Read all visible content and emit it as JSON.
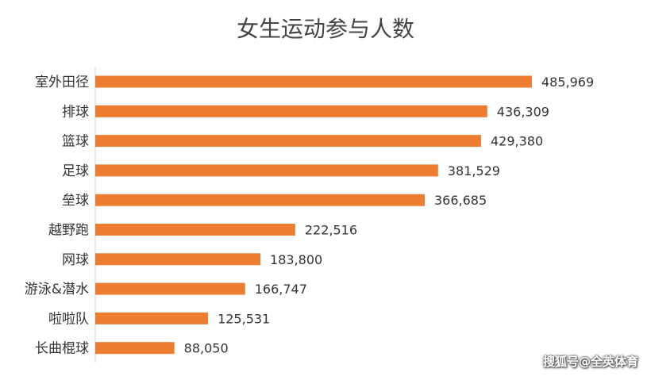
{
  "chart_data": {
    "type": "bar",
    "orientation": "horizontal",
    "title": "女生运动参与人数",
    "xlabel": "",
    "ylabel": "",
    "categories": [
      "室外田径",
      "排球",
      "篮球",
      "足球",
      "垒球",
      "越野跑",
      "网球",
      "游泳&潜水",
      "啦啦队",
      "长曲棍球"
    ],
    "values": [
      485969,
      436309,
      429380,
      381529,
      366685,
      222516,
      183800,
      166747,
      125531,
      88050
    ],
    "value_labels": [
      "485,969",
      "436,309",
      "429,380",
      "381,529",
      "366,685",
      "222,516",
      "183,800",
      "166,747",
      "125,531",
      "88,050"
    ],
    "xlim": [
      0,
      485969
    ],
    "bar_color": "#ED7D31",
    "grid": false,
    "legend": "none"
  },
  "watermark": "搜狐号@全英体育"
}
